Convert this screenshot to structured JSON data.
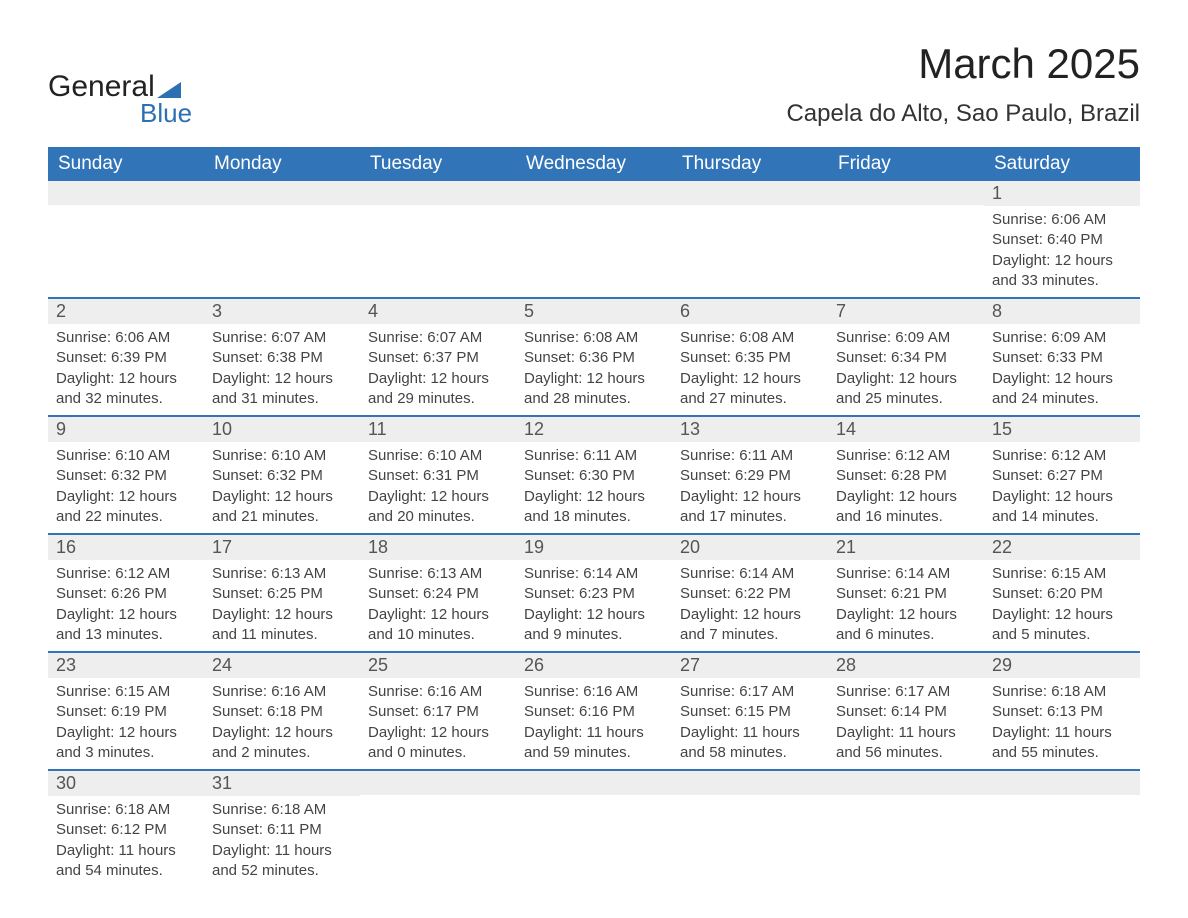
{
  "logo": {
    "word1": "General",
    "word2": "Blue"
  },
  "title": {
    "month": "March 2025",
    "location": "Capela do Alto, Sao Paulo, Brazil"
  },
  "style": {
    "header_bg": "#3174b8",
    "header_text": "#ffffff",
    "daynum_bg": "#eeeeee",
    "row_divider": "#3174b8",
    "body_text": "#444444",
    "title_text": "#222222",
    "logo_blue": "#2d6fb3",
    "page_bg": "#ffffff",
    "header_fontsize": 19,
    "title_fontsize": 42,
    "location_fontsize": 24,
    "daynum_fontsize": 18,
    "data_fontsize": 15
  },
  "columns": [
    "Sunday",
    "Monday",
    "Tuesday",
    "Wednesday",
    "Thursday",
    "Friday",
    "Saturday"
  ],
  "weeks": [
    [
      null,
      null,
      null,
      null,
      null,
      null,
      {
        "n": "1",
        "sunrise": "6:06 AM",
        "sunset": "6:40 PM",
        "daylight": "12 hours and 33 minutes."
      }
    ],
    [
      {
        "n": "2",
        "sunrise": "6:06 AM",
        "sunset": "6:39 PM",
        "daylight": "12 hours and 32 minutes."
      },
      {
        "n": "3",
        "sunrise": "6:07 AM",
        "sunset": "6:38 PM",
        "daylight": "12 hours and 31 minutes."
      },
      {
        "n": "4",
        "sunrise": "6:07 AM",
        "sunset": "6:37 PM",
        "daylight": "12 hours and 29 minutes."
      },
      {
        "n": "5",
        "sunrise": "6:08 AM",
        "sunset": "6:36 PM",
        "daylight": "12 hours and 28 minutes."
      },
      {
        "n": "6",
        "sunrise": "6:08 AM",
        "sunset": "6:35 PM",
        "daylight": "12 hours and 27 minutes."
      },
      {
        "n": "7",
        "sunrise": "6:09 AM",
        "sunset": "6:34 PM",
        "daylight": "12 hours and 25 minutes."
      },
      {
        "n": "8",
        "sunrise": "6:09 AM",
        "sunset": "6:33 PM",
        "daylight": "12 hours and 24 minutes."
      }
    ],
    [
      {
        "n": "9",
        "sunrise": "6:10 AM",
        "sunset": "6:32 PM",
        "daylight": "12 hours and 22 minutes."
      },
      {
        "n": "10",
        "sunrise": "6:10 AM",
        "sunset": "6:32 PM",
        "daylight": "12 hours and 21 minutes."
      },
      {
        "n": "11",
        "sunrise": "6:10 AM",
        "sunset": "6:31 PM",
        "daylight": "12 hours and 20 minutes."
      },
      {
        "n": "12",
        "sunrise": "6:11 AM",
        "sunset": "6:30 PM",
        "daylight": "12 hours and 18 minutes."
      },
      {
        "n": "13",
        "sunrise": "6:11 AM",
        "sunset": "6:29 PM",
        "daylight": "12 hours and 17 minutes."
      },
      {
        "n": "14",
        "sunrise": "6:12 AM",
        "sunset": "6:28 PM",
        "daylight": "12 hours and 16 minutes."
      },
      {
        "n": "15",
        "sunrise": "6:12 AM",
        "sunset": "6:27 PM",
        "daylight": "12 hours and 14 minutes."
      }
    ],
    [
      {
        "n": "16",
        "sunrise": "6:12 AM",
        "sunset": "6:26 PM",
        "daylight": "12 hours and 13 minutes."
      },
      {
        "n": "17",
        "sunrise": "6:13 AM",
        "sunset": "6:25 PM",
        "daylight": "12 hours and 11 minutes."
      },
      {
        "n": "18",
        "sunrise": "6:13 AM",
        "sunset": "6:24 PM",
        "daylight": "12 hours and 10 minutes."
      },
      {
        "n": "19",
        "sunrise": "6:14 AM",
        "sunset": "6:23 PM",
        "daylight": "12 hours and 9 minutes."
      },
      {
        "n": "20",
        "sunrise": "6:14 AM",
        "sunset": "6:22 PM",
        "daylight": "12 hours and 7 minutes."
      },
      {
        "n": "21",
        "sunrise": "6:14 AM",
        "sunset": "6:21 PM",
        "daylight": "12 hours and 6 minutes."
      },
      {
        "n": "22",
        "sunrise": "6:15 AM",
        "sunset": "6:20 PM",
        "daylight": "12 hours and 5 minutes."
      }
    ],
    [
      {
        "n": "23",
        "sunrise": "6:15 AM",
        "sunset": "6:19 PM",
        "daylight": "12 hours and 3 minutes."
      },
      {
        "n": "24",
        "sunrise": "6:16 AM",
        "sunset": "6:18 PM",
        "daylight": "12 hours and 2 minutes."
      },
      {
        "n": "25",
        "sunrise": "6:16 AM",
        "sunset": "6:17 PM",
        "daylight": "12 hours and 0 minutes."
      },
      {
        "n": "26",
        "sunrise": "6:16 AM",
        "sunset": "6:16 PM",
        "daylight": "11 hours and 59 minutes."
      },
      {
        "n": "27",
        "sunrise": "6:17 AM",
        "sunset": "6:15 PM",
        "daylight": "11 hours and 58 minutes."
      },
      {
        "n": "28",
        "sunrise": "6:17 AM",
        "sunset": "6:14 PM",
        "daylight": "11 hours and 56 minutes."
      },
      {
        "n": "29",
        "sunrise": "6:18 AM",
        "sunset": "6:13 PM",
        "daylight": "11 hours and 55 minutes."
      }
    ],
    [
      {
        "n": "30",
        "sunrise": "6:18 AM",
        "sunset": "6:12 PM",
        "daylight": "11 hours and 54 minutes."
      },
      {
        "n": "31",
        "sunrise": "6:18 AM",
        "sunset": "6:11 PM",
        "daylight": "11 hours and 52 minutes."
      },
      null,
      null,
      null,
      null,
      null
    ]
  ],
  "labels": {
    "sunrise": "Sunrise: ",
    "sunset": "Sunset: ",
    "daylight": "Daylight: "
  }
}
